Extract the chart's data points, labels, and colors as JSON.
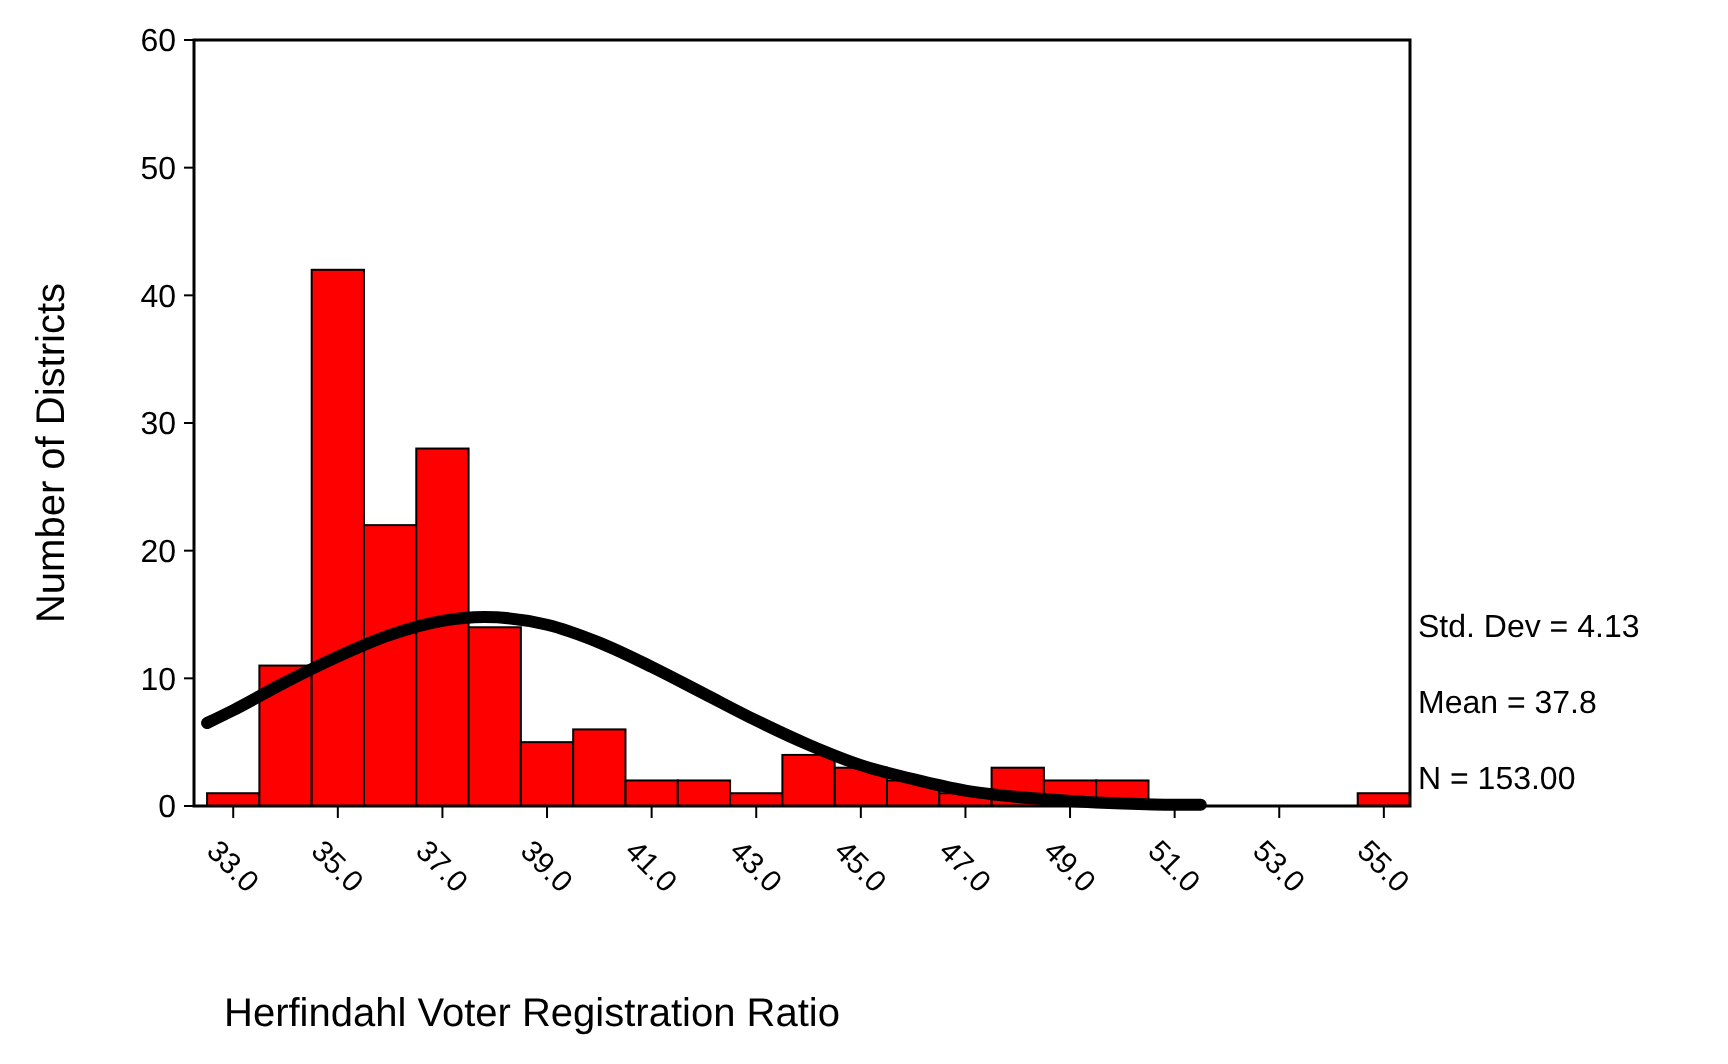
{
  "chart_data": {
    "type": "histogram",
    "xlabel": "Herfindahl Voter Registration Ratio",
    "ylabel": "Number of Districts",
    "xlim": [
      32.25,
      55.5
    ],
    "xticks": [
      {
        "value": 33,
        "label": "33.0"
      },
      {
        "value": 35,
        "label": "35.0"
      },
      {
        "value": 37,
        "label": "37.0"
      },
      {
        "value": 39,
        "label": "39.0"
      },
      {
        "value": 41,
        "label": "41.0"
      },
      {
        "value": 43,
        "label": "43.0"
      },
      {
        "value": 45,
        "label": "45.0"
      },
      {
        "value": 47,
        "label": "47.0"
      },
      {
        "value": 49,
        "label": "49.0"
      },
      {
        "value": 51,
        "label": "51.0"
      },
      {
        "value": 53,
        "label": "53.0"
      },
      {
        "value": 55,
        "label": "55.0"
      }
    ],
    "ylim": [
      0,
      60
    ],
    "yticks": [
      0,
      10,
      20,
      30,
      40,
      50,
      60
    ],
    "grid": false,
    "series": [
      {
        "color": "#ff0000",
        "bins": [
          32.5,
          33.5,
          34.5,
          35.5,
          36.5,
          37.5,
          38.5,
          39.5,
          40.5,
          41.5,
          42.5,
          43.5,
          44.5,
          45.5,
          46.5,
          47.5,
          48.5,
          49.5,
          50.5,
          51.5,
          52.5,
          53.5,
          54.5,
          55.5
        ],
        "values": [
          1,
          11,
          42,
          22,
          28,
          14,
          5,
          6,
          2,
          2,
          1,
          4,
          3,
          2,
          1,
          3,
          2,
          2,
          0,
          0,
          0,
          0,
          1
        ]
      },
      {
        "type": "line",
        "color": "#000000",
        "x": [
          32.5,
          33,
          34,
          35,
          36,
          37,
          37.8,
          39,
          40,
          41,
          42,
          43,
          44,
          45,
          46,
          47,
          48,
          49,
          50,
          51,
          51.5
        ],
        "values": [
          6.5,
          7.5,
          9.7,
          11.7,
          13.4,
          14.5,
          14.8,
          14.2,
          12.8,
          10.9,
          8.8,
          6.7,
          4.8,
          3.2,
          2.1,
          1.2,
          0.7,
          0.4,
          0.2,
          0.1,
          0.1
        ]
      }
    ],
    "annotations": [
      "Std. Dev = 4.13",
      "Mean = 37.8",
      "N = 153.00"
    ]
  }
}
